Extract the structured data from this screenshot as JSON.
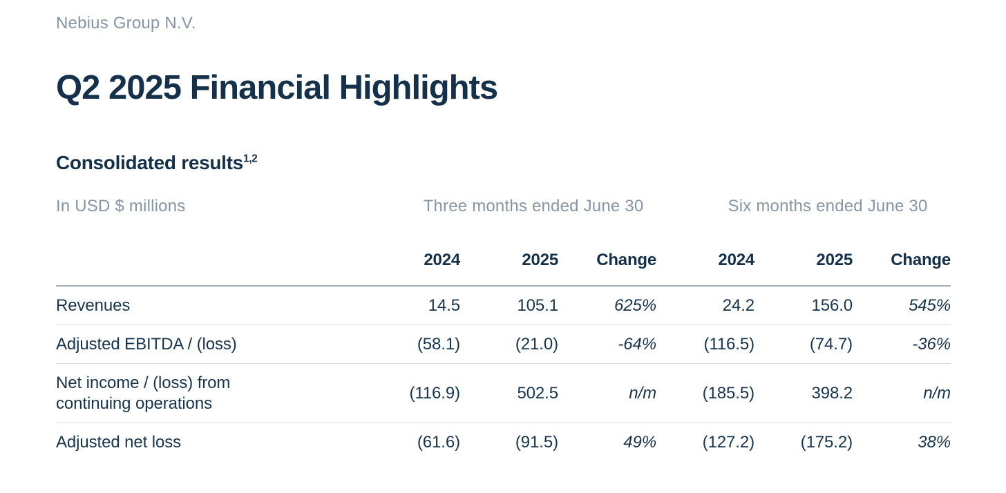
{
  "header": {
    "company": "Nebius Group N.V.",
    "title": "Q2 2025 Financial Highlights"
  },
  "section": {
    "title": "Consolidated results",
    "footnote_refs": "1,2"
  },
  "table": {
    "units_label": "In USD $ millions",
    "column_groups": [
      {
        "label": "Three months ended June 30"
      },
      {
        "label": "Six months ended June 30"
      }
    ],
    "columns": [
      "2024",
      "2025",
      "Change",
      "2024",
      "2025",
      "Change"
    ],
    "rows": [
      {
        "label": "Revenues",
        "values": [
          "14.5",
          "105.1",
          "625%",
          "24.2",
          "156.0",
          "545%"
        ]
      },
      {
        "label": "Adjusted EBITDA / (loss)",
        "values": [
          "(58.1)",
          "(21.0)",
          "-64%",
          "(116.5)",
          "(74.7)",
          "-36%"
        ]
      },
      {
        "label": "Net income / (loss) from continuing operations",
        "values": [
          "(116.9)",
          "502.5",
          "n/m",
          "(185.5)",
          "398.2",
          "n/m"
        ]
      },
      {
        "label": "Adjusted net loss",
        "values": [
          "(61.6)",
          "(91.5)",
          "49%",
          "(127.2)",
          "(175.2)",
          "38%"
        ]
      }
    ]
  },
  "colors": {
    "navy_text": "#14304A",
    "body_text": "#17344F",
    "muted_text": "#8695A6",
    "rule_heavy": "#9FAEB9",
    "rule_light": "#DDDDDF",
    "background": "#FFFFFF"
  }
}
